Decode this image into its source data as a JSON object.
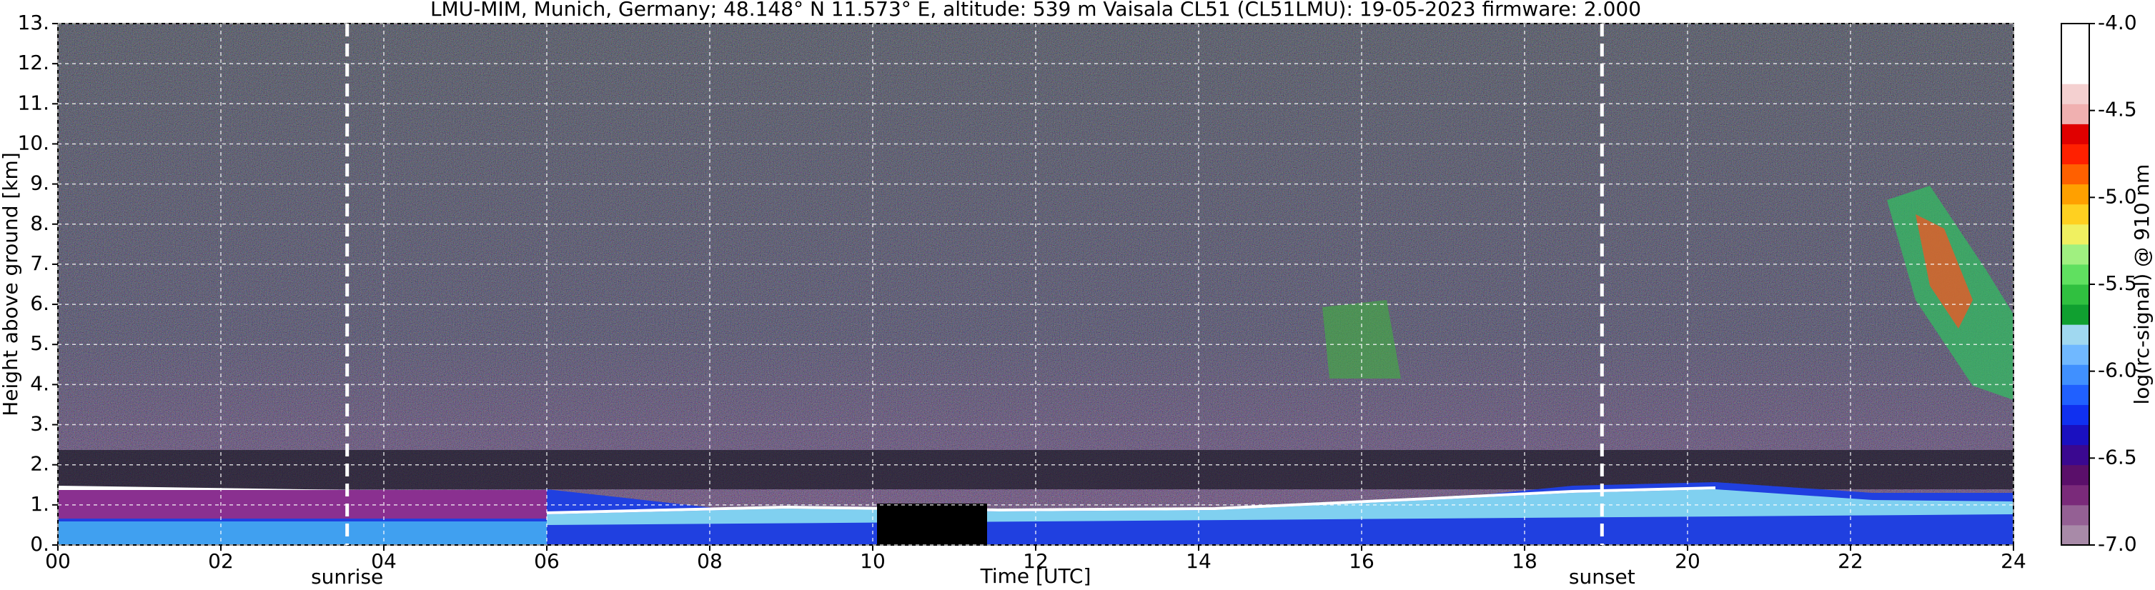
{
  "chart_data": {
    "type": "heatmap",
    "title": "LMU-MIM, Munich, Germany; 48.148° N 11.573° E, altitude: 539 m    Vaisala CL51 (CL51LMU): 19-05-2023    firmware: 2.000",
    "x_label": "Time [UTC]",
    "y_label": "Height above ground [km]",
    "xlim": [
      0,
      24
    ],
    "xticks": [
      {
        "value": 0,
        "label": "00"
      },
      {
        "value": 2,
        "label": "02"
      },
      {
        "value": 4,
        "label": "04"
      },
      {
        "value": 6,
        "label": "06"
      },
      {
        "value": 8,
        "label": "08"
      },
      {
        "value": 10,
        "label": "10"
      },
      {
        "value": 12,
        "label": "12"
      },
      {
        "value": 14,
        "label": "14"
      },
      {
        "value": 16,
        "label": "16"
      },
      {
        "value": 18,
        "label": "18"
      },
      {
        "value": 20,
        "label": "20"
      },
      {
        "value": 22,
        "label": "22"
      },
      {
        "value": 24,
        "label": "24"
      }
    ],
    "ylim": [
      0,
      13
    ],
    "yticks": [
      {
        "value": 0,
        "label": "0."
      },
      {
        "value": 1,
        "label": "1."
      },
      {
        "value": 2,
        "label": "2."
      },
      {
        "value": 3,
        "label": "3."
      },
      {
        "value": 4,
        "label": "4."
      },
      {
        "value": 5,
        "label": "5."
      },
      {
        "value": 6,
        "label": "6."
      },
      {
        "value": 7,
        "label": "7."
      },
      {
        "value": 8,
        "label": "8."
      },
      {
        "value": 9,
        "label": "9."
      },
      {
        "value": 10,
        "label": "10."
      },
      {
        "value": 11,
        "label": "11."
      },
      {
        "value": 12,
        "label": "12."
      },
      {
        "value": 13,
        "label": "13."
      }
    ],
    "grid": true,
    "annotations": [
      {
        "text": "sunrise",
        "x": 3.55
      },
      {
        "text": "sunset",
        "x": 18.95
      }
    ],
    "colorbar": {
      "label": "log(rc-signal) @ 910 nm",
      "lim": [
        -7,
        -4
      ],
      "ticks": [
        {
          "value": -4,
          "label": "-4.0"
        },
        -4.5,
        {
          "value": -5,
          "label": "-5.0"
        },
        -5.5,
        {
          "value": -6,
          "label": "-6.0"
        },
        -6.5,
        {
          "value": -7,
          "label": "-7.0"
        }
      ],
      "colors": [
        "#a88aa8",
        "#946094",
        "#7a2a7a",
        "#5a0f6a",
        "#3a0890",
        "#1a10c0",
        "#1030f0",
        "#2060ff",
        "#4090ff",
        "#70b8ff",
        "#a0d8f0",
        "#10a030",
        "#30c040",
        "#60e060",
        "#a0f080",
        "#f0f060",
        "#ffd020",
        "#ffa000",
        "#ff6000",
        "#ff2000",
        "#e00000",
        "#f0b0b0",
        "#f4d0d0",
        "#ffffff",
        "#ffffff",
        "#ffffff"
      ]
    }
  }
}
